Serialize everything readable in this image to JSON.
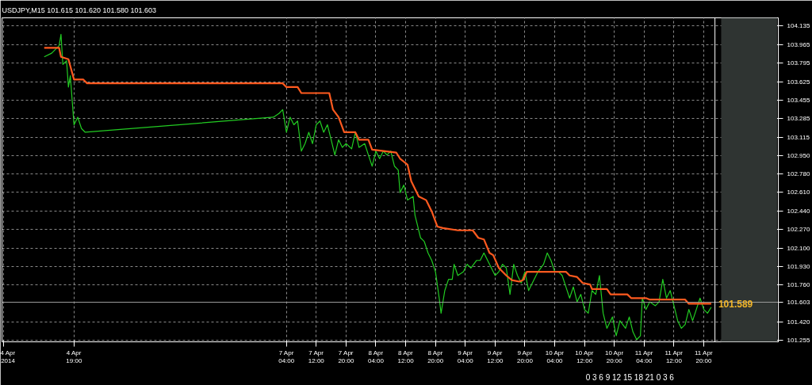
{
  "chart_data": {
    "type": "line",
    "title": "USDJPY,M15  101.615 101.620 101.580 101.603",
    "xlim": [
      "2014-04-03T23:40",
      "2014-04-12T16:00"
    ],
    "ylim": [
      101.24,
      104.21
    ],
    "xticks": [
      {
        "value": "2014-04-04T00:00",
        "label": "4 Apr 2014"
      },
      {
        "value": "2014-04-04T19:00",
        "label": "4 Apr 19:00"
      },
      {
        "value": "2014-04-07T04:00",
        "label": "7 Apr 04:00"
      },
      {
        "value": "2014-04-07T12:00",
        "label": "7 Apr 12:00"
      },
      {
        "value": "2014-04-07T20:00",
        "label": "7 Apr 20:00"
      },
      {
        "value": "2014-04-08T04:00",
        "label": "8 Apr 04:00"
      },
      {
        "value": "2014-04-08T12:00",
        "label": "8 Apr 12:00"
      },
      {
        "value": "2014-04-08T20:00",
        "label": "8 Apr 20:00"
      },
      {
        "value": "2014-04-09T04:00",
        "label": "9 Apr 04:00"
      },
      {
        "value": "2014-04-09T12:00",
        "label": "9 Apr 12:00"
      },
      {
        "value": "2014-04-09T20:00",
        "label": "9 Apr 20:00"
      },
      {
        "value": "2014-04-10T04:00",
        "label": "10 Apr 04:00"
      },
      {
        "value": "2014-04-10T12:00",
        "label": "10 Apr 12:00"
      },
      {
        "value": "2014-04-10T20:00",
        "label": "10 Apr 20:00"
      },
      {
        "value": "2014-04-11T04:00",
        "label": "11 Apr 04:00"
      },
      {
        "value": "2014-04-11T12:00",
        "label": "11 Apr 12:00"
      },
      {
        "value": "2014-04-11T20:00",
        "label": "11 Apr 20:00"
      }
    ],
    "yticks": [
      {
        "value": 101.255,
        "label": "101.255"
      },
      {
        "value": 101.42,
        "label": "101.420"
      },
      {
        "value": 101.76,
        "label": "101.760"
      },
      {
        "value": 101.93,
        "label": "101.930"
      },
      {
        "value": 102.1,
        "label": "102.100"
      },
      {
        "value": 102.27,
        "label": "102.270"
      },
      {
        "value": 102.44,
        "label": "102.440"
      },
      {
        "value": 102.61,
        "label": "102.610"
      },
      {
        "value": 102.78,
        "label": "102.780"
      },
      {
        "value": 102.95,
        "label": "102.950"
      },
      {
        "value": 103.115,
        "label": "103.115"
      },
      {
        "value": 103.285,
        "label": "103.285"
      },
      {
        "value": 103.455,
        "label": "103.455"
      },
      {
        "value": 103.625,
        "label": "103.625"
      },
      {
        "value": 103.795,
        "label": "103.795"
      },
      {
        "value": 103.965,
        "label": "103.965"
      },
      {
        "value": 104.135,
        "label": "104.135"
      }
    ],
    "grid": true,
    "line_style": "solid",
    "series": [
      {
        "color": "#22cc22",
        "x": [
          "2014-04-04T11:00",
          "2014-04-04T13:00",
          "2014-04-04T15:00",
          "2014-04-04T15:30",
          "2014-04-04T16:00",
          "2014-04-04T17:00",
          "2014-04-04T17:30",
          "2014-04-04T18:00",
          "2014-04-04T19:00",
          "2014-04-04T20:00",
          "2014-04-04T21:00",
          "2014-04-04T22:00",
          "2014-04-07T00:30",
          "2014-04-07T02:00",
          "2014-04-07T03:00",
          "2014-04-07T04:00",
          "2014-04-07T05:00",
          "2014-04-07T06:00",
          "2014-04-07T07:00",
          "2014-04-07T08:00",
          "2014-04-07T09:00",
          "2014-04-07T10:00",
          "2014-04-07T11:00",
          "2014-04-07T12:00",
          "2014-04-07T13:00",
          "2014-04-07T14:00",
          "2014-04-07T15:00",
          "2014-04-07T16:00",
          "2014-04-07T17:00",
          "2014-04-07T18:00",
          "2014-04-07T19:00",
          "2014-04-07T20:00",
          "2014-04-07T21:30",
          "2014-04-07T22:30",
          "2014-04-07T23:30",
          "2014-04-08T01:00",
          "2014-04-08T02:00",
          "2014-04-08T03:00",
          "2014-04-08T04:00",
          "2014-04-08T05:00",
          "2014-04-08T06:00",
          "2014-04-08T07:00",
          "2014-04-08T08:00",
          "2014-04-08T09:00",
          "2014-04-08T10:00",
          "2014-04-08T10:30",
          "2014-04-08T11:30",
          "2014-04-08T12:30",
          "2014-04-08T14:00",
          "2014-04-08T14:30",
          "2014-04-08T15:00",
          "2014-04-08T16:00",
          "2014-04-08T17:00",
          "2014-04-08T18:00",
          "2014-04-08T19:00",
          "2014-04-08T20:00",
          "2014-04-08T21:00",
          "2014-04-08T21:30",
          "2014-04-08T22:30",
          "2014-04-08T23:30",
          "2014-04-09T00:30",
          "2014-04-09T01:00",
          "2014-04-09T02:00",
          "2014-04-09T03:30",
          "2014-04-09T04:30",
          "2014-04-09T05:30",
          "2014-04-09T07:00",
          "2014-04-09T08:00",
          "2014-04-09T09:00",
          "2014-04-09T10:00",
          "2014-04-09T11:00",
          "2014-04-09T12:00",
          "2014-04-09T13:00",
          "2014-04-09T14:00",
          "2014-04-09T15:00",
          "2014-04-09T16:00",
          "2014-04-09T17:00",
          "2014-04-09T18:00",
          "2014-04-09T19:00",
          "2014-04-09T20:00",
          "2014-04-09T21:00",
          "2014-04-09T22:00",
          "2014-04-09T23:30",
          "2014-04-10T01:00",
          "2014-04-10T02:00",
          "2014-04-10T03:00",
          "2014-04-10T04:00",
          "2014-04-10T05:00",
          "2014-04-10T06:00",
          "2014-04-10T07:00",
          "2014-04-10T08:00",
          "2014-04-10T09:00",
          "2014-04-10T10:00",
          "2014-04-10T11:00",
          "2014-04-10T12:00",
          "2014-04-10T13:00",
          "2014-04-10T14:00",
          "2014-04-10T15:00",
          "2014-04-10T16:00",
          "2014-04-10T17:00",
          "2014-04-10T18:00",
          "2014-04-10T19:30",
          "2014-04-10T20:30",
          "2014-04-10T21:30",
          "2014-04-10T23:00",
          "2014-04-11T00:00",
          "2014-04-11T01:00",
          "2014-04-11T02:00",
          "2014-04-11T03:00",
          "2014-04-11T03:30",
          "2014-04-11T04:30",
          "2014-04-11T05:30",
          "2014-04-11T07:00",
          "2014-04-11T08:00",
          "2014-04-11T09:00",
          "2014-04-11T10:00",
          "2014-04-11T11:00",
          "2014-04-11T12:00",
          "2014-04-11T13:00",
          "2014-04-11T14:00",
          "2014-04-11T15:00",
          "2014-04-11T16:00",
          "2014-04-11T17:00",
          "2014-04-11T18:00",
          "2014-04-11T19:00",
          "2014-04-11T20:00",
          "2014-04-11T21:00",
          "2014-04-11T22:00"
        ],
        "values": [
          103.852,
          103.886,
          103.955,
          104.059,
          103.783,
          103.817,
          103.575,
          103.679,
          103.23,
          103.299,
          103.195,
          103.161,
          103.299,
          103.333,
          103.368,
          103.161,
          103.299,
          103.23,
          103.264,
          102.988,
          103.057,
          103.161,
          103.057,
          103.23,
          103.264,
          103.161,
          103.23,
          103.092,
          102.953,
          103.092,
          103.022,
          103.057,
          103.009,
          103.161,
          103.022,
          103.057,
          102.953,
          102.85,
          102.988,
          102.919,
          102.988,
          102.953,
          102.988,
          102.85,
          102.815,
          102.608,
          102.677,
          102.539,
          102.573,
          102.401,
          102.332,
          102.193,
          102.159,
          102.055,
          101.986,
          101.882,
          101.641,
          101.502,
          101.71,
          101.813,
          101.813,
          101.951,
          101.848,
          101.882,
          101.951,
          101.917,
          101.986,
          101.986,
          102.055,
          101.986,
          101.917,
          101.848,
          101.882,
          101.951,
          101.917,
          101.675,
          101.951,
          101.848,
          101.779,
          101.882,
          101.71,
          101.779,
          101.882,
          101.951,
          102.055,
          101.986,
          101.882,
          101.882,
          101.848,
          101.744,
          101.641,
          101.744,
          101.606,
          101.675,
          101.537,
          101.502,
          101.71,
          101.675,
          101.848,
          101.502,
          101.364,
          101.468,
          101.295,
          101.433,
          101.364,
          101.468,
          101.33,
          101.26,
          101.295,
          101.641,
          101.537,
          101.606,
          101.571,
          101.606,
          101.813,
          101.641,
          101.71,
          101.571,
          101.433,
          101.364,
          101.399,
          101.537,
          101.433,
          101.537,
          101.641,
          101.537,
          101.502,
          101.558
        ]
      },
      {
        "color": "#ff5a1f",
        "x": [
          "2014-04-04T11:00",
          "2014-04-04T15:00",
          "2014-04-04T15:30",
          "2014-04-04T17:30",
          "2014-04-04T19:00",
          "2014-04-04T21:30",
          "2014-04-04T22:30",
          "2014-04-07T03:00",
          "2014-04-07T04:00",
          "2014-04-07T07:00",
          "2014-04-07T08:00",
          "2014-04-07T15:30",
          "2014-04-07T16:30",
          "2014-04-07T18:00",
          "2014-04-07T19:30",
          "2014-04-07T22:30",
          "2014-04-07T23:30",
          "2014-04-08T02:00",
          "2014-04-08T03:00",
          "2014-04-08T09:30",
          "2014-04-08T10:30",
          "2014-04-08T12:30",
          "2014-04-08T13:30",
          "2014-04-08T15:30",
          "2014-04-08T17:30",
          "2014-04-08T19:00",
          "2014-04-08T20:30",
          "2014-04-08T22:00",
          "2014-04-09T02:00",
          "2014-04-09T06:00",
          "2014-04-09T07:30",
          "2014-04-09T09:00",
          "2014-04-09T10:30",
          "2014-04-09T11:30",
          "2014-04-09T13:00",
          "2014-04-09T15:00",
          "2014-04-09T16:30",
          "2014-04-09T18:30",
          "2014-04-09T19:30",
          "2014-04-09T20:30",
          "2014-04-10T07:00",
          "2014-04-10T08:00",
          "2014-04-10T10:00",
          "2014-04-10T11:30",
          "2014-04-10T13:30",
          "2014-04-10T14:00",
          "2014-04-10T18:00",
          "2014-04-10T19:00",
          "2014-04-10T23:30",
          "2014-04-11T00:30",
          "2014-04-11T04:30",
          "2014-04-11T05:30",
          "2014-04-11T15:00",
          "2014-04-11T16:00",
          "2014-04-11T22:00"
        ],
        "values": [
          103.935,
          103.935,
          103.852,
          103.831,
          103.644,
          103.644,
          103.61,
          103.61,
          103.575,
          103.575,
          103.52,
          103.52,
          103.368,
          103.299,
          103.161,
          103.161,
          103.092,
          103.092,
          103.002,
          102.974,
          102.919,
          102.864,
          102.712,
          102.573,
          102.539,
          102.435,
          102.297,
          102.283,
          102.262,
          102.262,
          102.193,
          102.179,
          102.055,
          102.034,
          101.917,
          101.848,
          101.806,
          101.792,
          101.806,
          101.882,
          101.882,
          101.848,
          101.834,
          101.779,
          101.765,
          101.724,
          101.724,
          101.675,
          101.675,
          101.641,
          101.641,
          101.627,
          101.627,
          101.589,
          101.589
        ]
      }
    ],
    "ref_lines": [
      {
        "axis": "y",
        "value": 101.603,
        "label": "101.603",
        "color": "#9a9a9a"
      },
      {
        "axis": "x",
        "value": "2014-04-11T23:00",
        "color": "#ffffff"
      }
    ],
    "bands": [
      {
        "axis": "x",
        "from": "2014-04-12T00:40",
        "to": "2014-04-12T15:40",
        "color": "#2f3432"
      }
    ],
    "annotations": [
      {
        "text": "101.589",
        "x": "2014-04-11T22:00",
        "y": 101.589
      },
      "0 3 6 9 12 15 18 21 0 3 6"
    ]
  }
}
